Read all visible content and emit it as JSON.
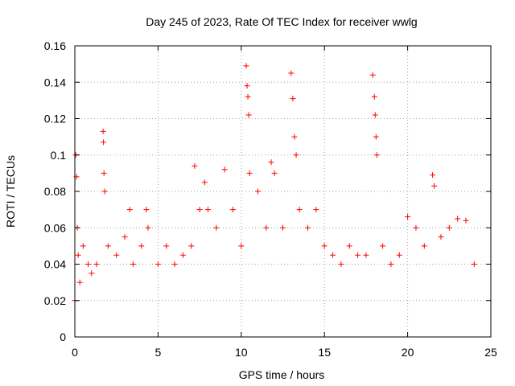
{
  "chart_data": {
    "type": "scatter",
    "title": "Day 245 of 2023, Rate Of TEC Index for receiver wwlg",
    "xlabel": "GPS time / hours",
    "ylabel": "ROTI / TECUs",
    "xlim": [
      0,
      25
    ],
    "ylim": [
      0,
      0.16
    ],
    "xticks": [
      "0",
      "5",
      "10",
      "15",
      "20",
      "25"
    ],
    "yticks": [
      "0",
      "0.02",
      "0.04",
      "0.06",
      "0.08",
      "0.1",
      "0.12",
      "0.14",
      "0.16"
    ],
    "grid": true,
    "marker": "plus",
    "color": "#ff0000",
    "series": [
      {
        "x": [
          0.0,
          0.05,
          0.1,
          0.15,
          0.2,
          0.3,
          0.5,
          0.8,
          1.0,
          1.3,
          1.7,
          1.72,
          1.75,
          1.8,
          2.0,
          2.5,
          3.0,
          3.3,
          3.5,
          4.0,
          4.3,
          4.4,
          5.0,
          5.5,
          6.0,
          6.5,
          7.0,
          7.2,
          7.5,
          7.8,
          8.0,
          8.5,
          9.0,
          9.5,
          10.0,
          10.3,
          10.35,
          10.4,
          10.45,
          10.5,
          11.0,
          11.5,
          11.8,
          12.0,
          12.5,
          13.0,
          13.1,
          13.2,
          13.3,
          13.5,
          14.0,
          14.5,
          15.0,
          15.5,
          16.0,
          16.5,
          17.0,
          17.5,
          17.9,
          18.0,
          18.05,
          18.1,
          18.15,
          18.5,
          19.0,
          19.5,
          20.0,
          20.5,
          21.0,
          21.5,
          21.6,
          22.0,
          22.5,
          23.0,
          23.5,
          24.0
        ],
        "y": [
          0.02,
          0.1,
          0.088,
          0.06,
          0.045,
          0.03,
          0.05,
          0.04,
          0.035,
          0.04,
          0.113,
          0.107,
          0.09,
          0.08,
          0.05,
          0.045,
          0.055,
          0.07,
          0.04,
          0.05,
          0.07,
          0.06,
          0.04,
          0.05,
          0.04,
          0.045,
          0.05,
          0.094,
          0.07,
          0.085,
          0.07,
          0.06,
          0.092,
          0.07,
          0.05,
          0.149,
          0.138,
          0.132,
          0.122,
          0.09,
          0.08,
          0.06,
          0.096,
          0.09,
          0.06,
          0.145,
          0.131,
          0.11,
          0.1,
          0.07,
          0.06,
          0.07,
          0.05,
          0.045,
          0.04,
          0.05,
          0.045,
          0.045,
          0.144,
          0.132,
          0.122,
          0.11,
          0.1,
          0.05,
          0.04,
          0.045,
          0.066,
          0.06,
          0.05,
          0.089,
          0.083,
          0.055,
          0.06,
          0.065,
          0.064,
          0.04
        ]
      }
    ]
  }
}
